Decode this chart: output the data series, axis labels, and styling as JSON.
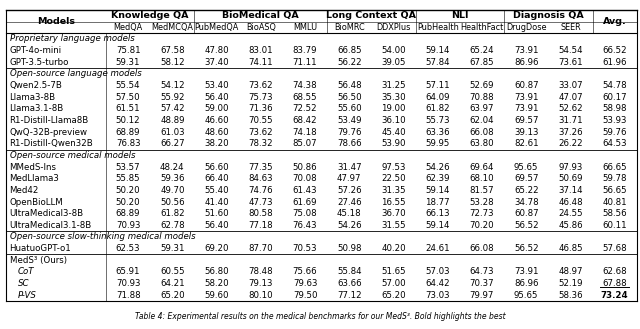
{
  "all_cols": [
    "MedQA",
    "MedMCQA",
    "PubMedQA",
    "BioASQ",
    "MMLU",
    "BioMRC",
    "DDXPlus",
    "PubHealth",
    "HealthFact",
    "DrugDose",
    "SEER",
    "Avg."
  ],
  "col_groups": [
    {
      "name": "Knowledge QA",
      "span": 2
    },
    {
      "name": "BioMedical QA",
      "span": 3
    },
    {
      "name": "Long Context QA",
      "span": 2
    },
    {
      "name": "NLI",
      "span": 2
    },
    {
      "name": "Diagnosis QA",
      "span": 2
    }
  ],
  "sections": [
    {
      "section_name": "Proprietary language models",
      "italic_section": true,
      "rows": [
        {
          "model": "GPT-4o-mini",
          "indent": false,
          "italic": false,
          "values": [
            "75.81",
            "67.58",
            "47.80",
            "83.01",
            "83.79",
            "66.85",
            "54.00",
            "59.14",
            "65.24",
            "73.91",
            "54.54",
            "66.52"
          ],
          "bold_last": false,
          "underline_last": false
        },
        {
          "model": "GPT-3.5-turbo",
          "indent": false,
          "italic": false,
          "values": [
            "59.31",
            "58.12",
            "37.40",
            "74.11",
            "71.11",
            "56.22",
            "39.05",
            "57.84",
            "67.85",
            "86.96",
            "73.61",
            "61.96"
          ],
          "bold_last": false,
          "underline_last": false
        }
      ]
    },
    {
      "section_name": "Open-source language models",
      "italic_section": true,
      "rows": [
        {
          "model": "Qwen2.5-7B",
          "indent": false,
          "italic": false,
          "values": [
            "55.54",
            "54.12",
            "53.40",
            "73.62",
            "74.38",
            "56.48",
            "31.25",
            "57.11",
            "52.69",
            "60.87",
            "33.07",
            "54.78"
          ],
          "bold_last": false,
          "underline_last": false
        },
        {
          "model": "Llama3-8B",
          "indent": false,
          "italic": false,
          "values": [
            "57.50",
            "55.92",
            "56.40",
            "75.73",
            "68.55",
            "56.50",
            "35.30",
            "64.09",
            "70.88",
            "73.91",
            "47.07",
            "60.17"
          ],
          "bold_last": false,
          "underline_last": false
        },
        {
          "model": "Llama3.1-8B",
          "indent": false,
          "italic": false,
          "values": [
            "61.51",
            "57.42",
            "59.00",
            "71.36",
            "72.52",
            "55.60",
            "19.00",
            "61.82",
            "63.97",
            "73.91",
            "52.62",
            "58.98"
          ],
          "bold_last": false,
          "underline_last": false
        },
        {
          "model": "R1-Distill-Llama8B",
          "indent": false,
          "italic": false,
          "values": [
            "50.12",
            "48.89",
            "46.60",
            "70.55",
            "68.42",
            "53.49",
            "36.10",
            "55.73",
            "62.04",
            "69.57",
            "31.71",
            "53.93"
          ],
          "bold_last": false,
          "underline_last": false
        },
        {
          "model": "QwQ-32B-preview",
          "indent": false,
          "italic": false,
          "values": [
            "68.89",
            "61.03",
            "48.60",
            "73.62",
            "74.18",
            "79.76",
            "45.40",
            "63.36",
            "66.08",
            "39.13",
            "37.26",
            "59.76"
          ],
          "bold_last": false,
          "underline_last": false
        },
        {
          "model": "R1-Distill-Qwen32B",
          "indent": false,
          "italic": false,
          "values": [
            "76.83",
            "66.27",
            "38.20",
            "78.32",
            "85.07",
            "78.66",
            "53.90",
            "59.95",
            "63.80",
            "82.61",
            "26.22",
            "64.53"
          ],
          "bold_last": false,
          "underline_last": false
        }
      ]
    },
    {
      "section_name": "Open-source medical models",
      "italic_section": true,
      "rows": [
        {
          "model": "MMedS-Ins",
          "indent": false,
          "italic": false,
          "values": [
            "53.57",
            "48.24",
            "56.60",
            "77.35",
            "50.86",
            "31.47",
            "97.53",
            "54.26",
            "69.64",
            "95.65",
            "97.93",
            "66.65"
          ],
          "bold_last": false,
          "underline_last": false
        },
        {
          "model": "MedLlama3",
          "indent": false,
          "italic": false,
          "values": [
            "55.85",
            "59.36",
            "66.40",
            "84.63",
            "70.08",
            "47.97",
            "22.50",
            "62.39",
            "68.10",
            "69.57",
            "50.69",
            "59.78"
          ],
          "bold_last": false,
          "underline_last": false
        },
        {
          "model": "Med42",
          "indent": false,
          "italic": false,
          "values": [
            "50.20",
            "49.70",
            "55.40",
            "74.76",
            "61.43",
            "57.26",
            "31.35",
            "59.14",
            "81.57",
            "65.22",
            "37.14",
            "56.65"
          ],
          "bold_last": false,
          "underline_last": false
        },
        {
          "model": "OpenBioLLM",
          "indent": false,
          "italic": false,
          "values": [
            "50.20",
            "50.56",
            "41.40",
            "47.73",
            "61.69",
            "27.46",
            "16.55",
            "18.77",
            "53.28",
            "34.78",
            "46.48",
            "40.81"
          ],
          "bold_last": false,
          "underline_last": false
        },
        {
          "model": "UltraMedical3-8B",
          "indent": false,
          "italic": false,
          "values": [
            "68.89",
            "61.82",
            "51.60",
            "80.58",
            "75.08",
            "45.18",
            "36.70",
            "66.13",
            "72.73",
            "60.87",
            "24.55",
            "58.56"
          ],
          "bold_last": false,
          "underline_last": false
        },
        {
          "model": "UltraMedical3.1-8B",
          "indent": false,
          "italic": false,
          "values": [
            "70.93",
            "62.78",
            "56.40",
            "77.18",
            "76.43",
            "54.26",
            "31.55",
            "59.14",
            "70.20",
            "56.52",
            "45.86",
            "60.11"
          ],
          "bold_last": false,
          "underline_last": false
        }
      ]
    },
    {
      "section_name": "Open-source slow-thinking medical models",
      "italic_section": true,
      "rows": [
        {
          "model": "HuatuoGPT-o1",
          "indent": false,
          "italic": false,
          "values": [
            "62.53",
            "59.31",
            "69.20",
            "87.70",
            "70.53",
            "50.98",
            "40.20",
            "24.61",
            "66.08",
            "56.52",
            "46.85",
            "57.68"
          ],
          "bold_last": false,
          "underline_last": false
        }
      ]
    },
    {
      "section_name": "MedS³ (Ours)",
      "italic_section": false,
      "rows": [
        {
          "model": "CoT",
          "indent": true,
          "italic": true,
          "values": [
            "65.91",
            "60.55",
            "56.80",
            "78.48",
            "75.66",
            "55.84",
            "51.65",
            "57.03",
            "64.73",
            "73.91",
            "48.97",
            "62.68"
          ],
          "bold_last": false,
          "underline_last": false
        },
        {
          "model": "SC",
          "indent": true,
          "italic": true,
          "values": [
            "70.93",
            "64.21",
            "58.20",
            "79.13",
            "79.63",
            "63.66",
            "57.00",
            "64.42",
            "70.37",
            "86.96",
            "52.19",
            "67.88"
          ],
          "bold_last": false,
          "underline_last": true
        },
        {
          "model": "P-VS",
          "indent": true,
          "italic": true,
          "values": [
            "71.88",
            "65.20",
            "59.60",
            "80.10",
            "79.50",
            "77.12",
            "65.20",
            "73.03",
            "79.97",
            "95.65",
            "58.36",
            "73.24"
          ],
          "bold_last": true,
          "underline_last": false
        }
      ]
    }
  ],
  "caption": "Table 4: Experimental results on the medical benchmarks for our MedS³. Bold highlights the best",
  "bg_color": "#ffffff",
  "font_size": 6.2,
  "header_font_size": 6.8
}
